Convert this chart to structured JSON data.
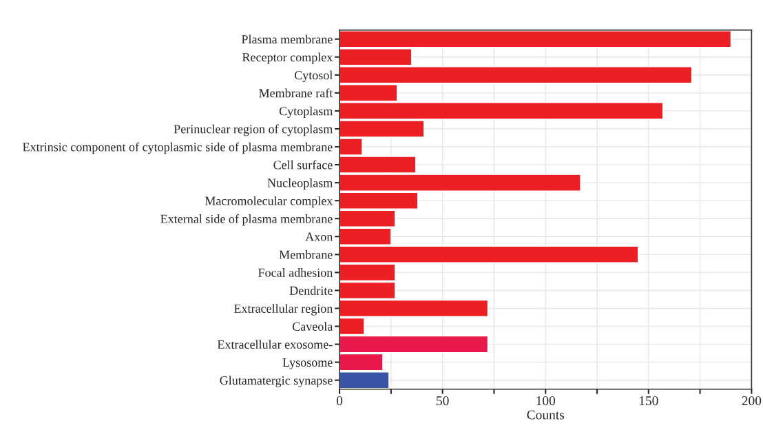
{
  "chart_data": {
    "type": "bar",
    "orientation": "horizontal",
    "xlabel": "Counts",
    "categories": [
      "Plasma membrane",
      "Receptor complex",
      "Cytosol",
      "Membrane raft",
      "Cytoplasm",
      "Perinuclear region of cytoplasm",
      "Extrinsic component of cytoplasmic side of plasma membrane",
      "Cell surface",
      "Nucleoplasm",
      "Macromolecular complex",
      "External side of plasma membrane",
      "Axon",
      "Membrane",
      "Focal adhesion",
      "Dendrite",
      "Extracellular region",
      "Caveola",
      "Extracellular exosome-",
      "Lysosome",
      "Glutamatergic synapse"
    ],
    "values": [
      190,
      35,
      171,
      28,
      157,
      41,
      11,
      37,
      117,
      38,
      27,
      25,
      145,
      27,
      27,
      72,
      12,
      72,
      21,
      24
    ],
    "colors": [
      "#ec1f24",
      "#ec1f24",
      "#ec1f24",
      "#ec1f24",
      "#ec1f24",
      "#ec1f24",
      "#ec1f24",
      "#ec1f24",
      "#ec1f24",
      "#ec1f24",
      "#ec1f24",
      "#ec1f24",
      "#ec1f24",
      "#ec1f24",
      "#ec1f24",
      "#ec1f24",
      "#ec1f24",
      "#e8184a",
      "#e8184a",
      "#3a53a4"
    ],
    "xlim": [
      0,
      200
    ],
    "xticks": [
      0,
      {
        "value": 25,
        "label": null
      },
      50,
      {
        "value": 75,
        "label": null
      },
      100,
      {
        "value": 125,
        "label": null
      },
      150,
      {
        "value": 175,
        "label": null
      },
      200
    ],
    "grid": true
  }
}
